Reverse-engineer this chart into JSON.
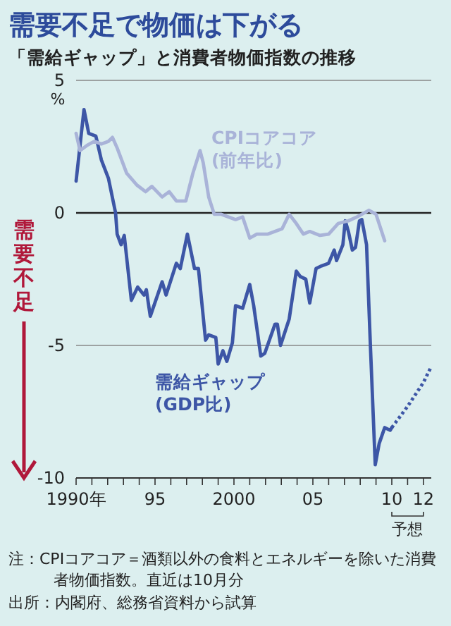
{
  "chart_data": {
    "type": "line",
    "title": "需要不足で物価は下がる",
    "subtitle": "「需給ギャップ」と消費者物価指数の推移",
    "ylabel": "%",
    "xlim": [
      1990,
      2012.5
    ],
    "ylim": [
      -10,
      5
    ],
    "xticks": [
      {
        "value": 1990,
        "label": "1990年"
      },
      {
        "value": 1991,
        "label": null
      },
      {
        "value": 1992,
        "label": null
      },
      {
        "value": 1993,
        "label": null
      },
      {
        "value": 1994,
        "label": null
      },
      {
        "value": 1995,
        "label": "95"
      },
      {
        "value": 1996,
        "label": null
      },
      {
        "value": 1997,
        "label": null
      },
      {
        "value": 1998,
        "label": null
      },
      {
        "value": 1999,
        "label": null
      },
      {
        "value": 2000,
        "label": "2000"
      },
      {
        "value": 2001,
        "label": null
      },
      {
        "value": 2002,
        "label": null
      },
      {
        "value": 2003,
        "label": null
      },
      {
        "value": 2004,
        "label": null
      },
      {
        "value": 2005,
        "label": "05"
      },
      {
        "value": 2006,
        "label": null
      },
      {
        "value": 2007,
        "label": null
      },
      {
        "value": 2008,
        "label": null
      },
      {
        "value": 2009,
        "label": null
      },
      {
        "value": 2010,
        "label": "10"
      },
      {
        "value": 2011,
        "label": null
      },
      {
        "value": 2012,
        "label": "12"
      }
    ],
    "yticks": [
      5,
      0,
      -5,
      -10
    ],
    "ref_lines": [
      {
        "axis": "y",
        "value": 5,
        "color": "#888888"
      },
      {
        "axis": "y",
        "value": 0,
        "color": "#222222"
      },
      {
        "axis": "y",
        "value": -5,
        "color": "#888888"
      }
    ],
    "series": [
      {
        "name": "需給ギャップ\n(GDP比)",
        "color": "#3d56a6",
        "line_style": "solid",
        "x": [
          1990.0,
          1990.5,
          1990.8,
          1991.25,
          1991.6,
          1992.05,
          1992.5,
          1992.6,
          1992.85,
          1993.05,
          1993.5,
          1993.9,
          1994.3,
          1994.45,
          1994.7,
          1995.45,
          1995.7,
          1996.35,
          1996.6,
          1997.05,
          1997.5,
          1997.75,
          1998.2,
          1998.4,
          1998.85,
          1999.0,
          1999.3,
          1999.55,
          1999.9,
          2000.1,
          2000.55,
          2001.0,
          2001.25,
          2001.7,
          2001.95,
          2002.6,
          2002.75,
          2002.95,
          2003.5,
          2003.95,
          2004.2,
          2004.55,
          2004.8,
          2005.2,
          2005.55,
          2006.0,
          2006.35,
          2006.5,
          2006.9,
          2007.05,
          2007.25,
          2007.5,
          2007.7,
          2007.95,
          2008.1,
          2008.4,
          2008.65,
          2008.95,
          2009.2,
          2009.55,
          2009.9,
          2010.0
        ],
        "values": [
          1.2,
          3.9,
          3.0,
          2.9,
          2.0,
          1.3,
          0.0,
          -0.8,
          -1.2,
          -0.85,
          -3.3,
          -2.8,
          -3.1,
          -2.9,
          -3.9,
          -2.6,
          -3.1,
          -1.9,
          -2.1,
          -0.8,
          -2.1,
          -2.1,
          -4.8,
          -4.6,
          -4.7,
          -5.7,
          -5.2,
          -5.6,
          -4.9,
          -3.5,
          -3.6,
          -2.7,
          -3.5,
          -5.4,
          -5.3,
          -4.2,
          -4.2,
          -5.0,
          -4.0,
          -2.2,
          -2.4,
          -2.5,
          -3.4,
          -2.1,
          -2.0,
          -1.9,
          -1.4,
          -1.8,
          -1.2,
          -0.3,
          -0.7,
          -1.4,
          -1.3,
          -0.3,
          -0.25,
          -1.2,
          -5.1,
          -9.5,
          -8.7,
          -8.1,
          -8.2,
          -8.1
        ]
      },
      {
        "color": "#3d56a6",
        "line_style": "dotted",
        "x": [
          2010.0,
          2011.0,
          2012.0,
          2012.5
        ],
        "values": [
          -8.1,
          -7.3,
          -6.4,
          -5.8
        ]
      },
      {
        "name": "CPIコアコア\n(前年比)",
        "color": "#a9b3d8",
        "line_style": "solid",
        "x": [
          1990.0,
          1990.25,
          1990.7,
          1991.15,
          1991.6,
          1992.05,
          1992.3,
          1992.6,
          1993.2,
          1993.85,
          1994.4,
          1994.8,
          1995.45,
          1995.9,
          1996.35,
          1996.95,
          1997.4,
          1997.85,
          1998.05,
          1998.4,
          1998.75,
          1999.2,
          2000.1,
          2000.55,
          2001.0,
          2001.45,
          2002.15,
          2003.05,
          2003.5,
          2003.95,
          2004.4,
          2004.8,
          2005.45,
          2006.0,
          2006.6,
          2007.25,
          2007.8,
          2008.55,
          2009.0,
          2009.55
        ],
        "values": [
          3.0,
          2.35,
          2.55,
          2.7,
          2.6,
          2.7,
          2.85,
          2.45,
          1.5,
          1.05,
          0.8,
          1.0,
          0.6,
          0.8,
          0.45,
          0.45,
          1.5,
          2.35,
          1.9,
          0.6,
          -0.05,
          -0.05,
          -0.25,
          -0.15,
          -0.95,
          -0.8,
          -0.8,
          -0.6,
          -0.05,
          -0.4,
          -0.8,
          -0.7,
          -0.85,
          -0.8,
          -0.4,
          -0.3,
          -0.15,
          0.1,
          -0.05,
          -1.05
        ]
      }
    ],
    "annotations": [
      "需要不足",
      "予想",
      "注：CPIコアコア＝酒類以外の食料とエネルギーを除いた消費者物価指数。直近は10月分",
      "出所：内閣府、総務省資料から試算"
    ]
  }
}
